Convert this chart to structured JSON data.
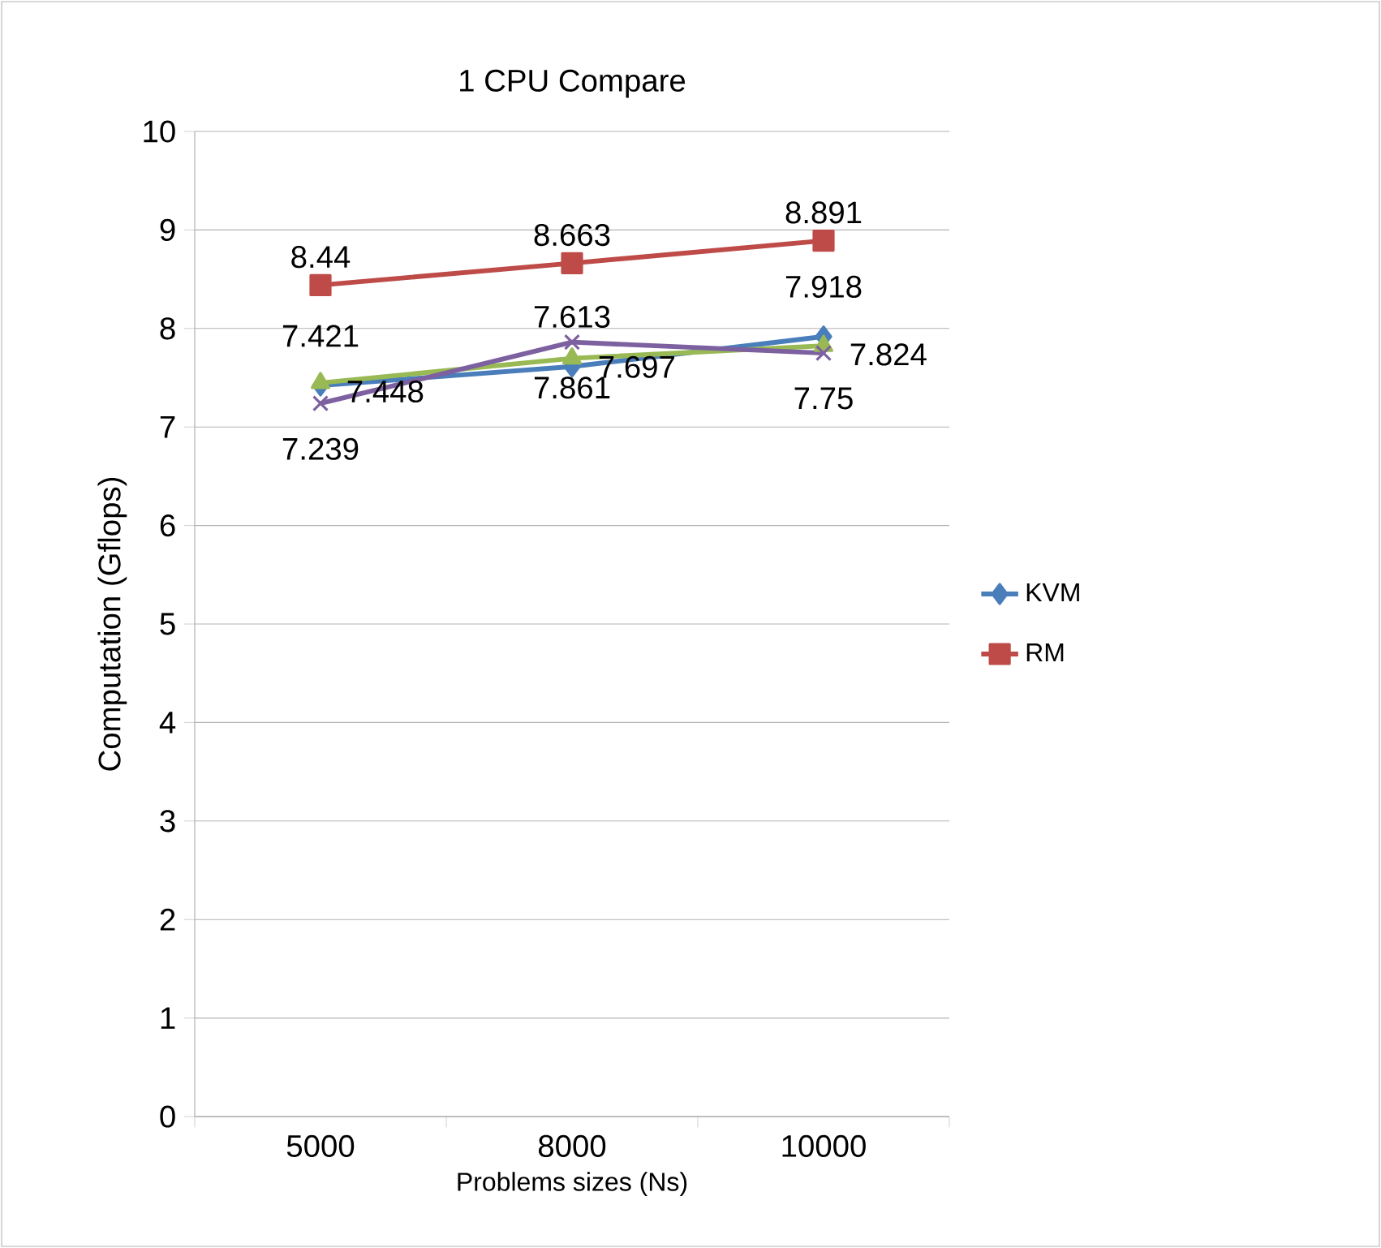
{
  "chart_data": {
    "type": "line",
    "title": "1 CPU Compare",
    "xlabel": "Problems sizes (Ns)",
    "ylabel": "Computation (Gflops)",
    "categories": [
      "5000",
      "8000",
      "10000"
    ],
    "series": [
      {
        "name": "KVM",
        "color": "#4a7ebb",
        "marker": "diamond",
        "values": [
          7.421,
          7.613,
          7.918
        ]
      },
      {
        "name": "RM",
        "color": "#be4b48",
        "marker": "square",
        "values": [
          8.44,
          8.663,
          8.891
        ]
      },
      {
        "color": "#98b954",
        "marker": "triangle",
        "values": [
          7.448,
          7.697,
          7.824
        ]
      },
      {
        "color": "#7d60a0",
        "marker": "cross",
        "values": [
          7.239,
          7.861,
          7.75
        ]
      }
    ],
    "ylim": [
      0,
      10
    ],
    "yticks": [
      0,
      1,
      2,
      3,
      4,
      5,
      6,
      7,
      8,
      9,
      10
    ],
    "grid": "y",
    "legend": "right",
    "data_labels": true
  }
}
